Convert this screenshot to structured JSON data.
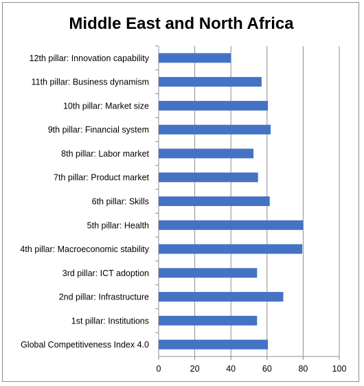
{
  "chart_data": {
    "type": "bar",
    "orientation": "horizontal",
    "title": "Middle East and North Africa",
    "categories": [
      "12th pillar: Innovation capability",
      "11th pillar: Business dynamism",
      "10th pillar: Market size",
      "9th pillar: Financial system",
      "8th pillar: Labor market",
      "7th pillar: Product market",
      "6th pillar: Skills",
      "5th pillar: Health",
      "4th pillar: Macroeconomic stability",
      "3rd pillar: ICT adoption",
      "2nd pillar: Infrastructure",
      "1st pillar: Institutions",
      "Global Competitiveness Index 4.0"
    ],
    "values": [
      40,
      57,
      60.5,
      62,
      52.5,
      55,
      61.5,
      80,
      79.5,
      54.5,
      69,
      54.5,
      60.5
    ],
    "xlim": [
      0,
      100
    ],
    "xticks": [
      "0",
      "20",
      "40",
      "60",
      "80",
      "100"
    ],
    "grid": "vertical",
    "legend": "none",
    "bar_color": "#4472c4"
  }
}
